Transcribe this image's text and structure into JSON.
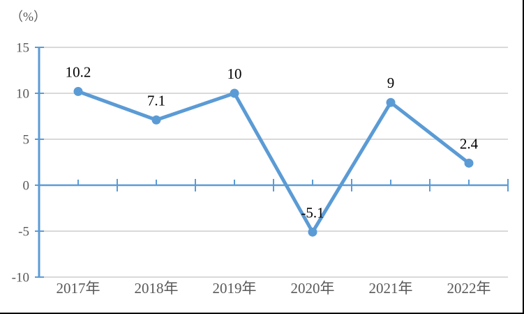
{
  "chart_data": {
    "type": "line",
    "title": "",
    "unit_label": "（%）",
    "categories": [
      "2017年",
      "2018年",
      "2019年",
      "2020年",
      "2021年",
      "2022年"
    ],
    "values": [
      10.2,
      7.1,
      10,
      -5.1,
      9,
      2.4
    ],
    "data_labels": [
      "10.2",
      "7.1",
      "10",
      "-5.1",
      "9",
      "2.4"
    ],
    "y_ticks": [
      15,
      10,
      5,
      0,
      -5,
      -10
    ],
    "ylim": [
      -10,
      15
    ],
    "grid": true,
    "legend": "none",
    "line_color": "#5B9BD5",
    "axis_color": "#5B9BD5",
    "gridline_color": "#D9D9D9",
    "tick_label_color": "#595959",
    "data_label_color": "#000000"
  }
}
